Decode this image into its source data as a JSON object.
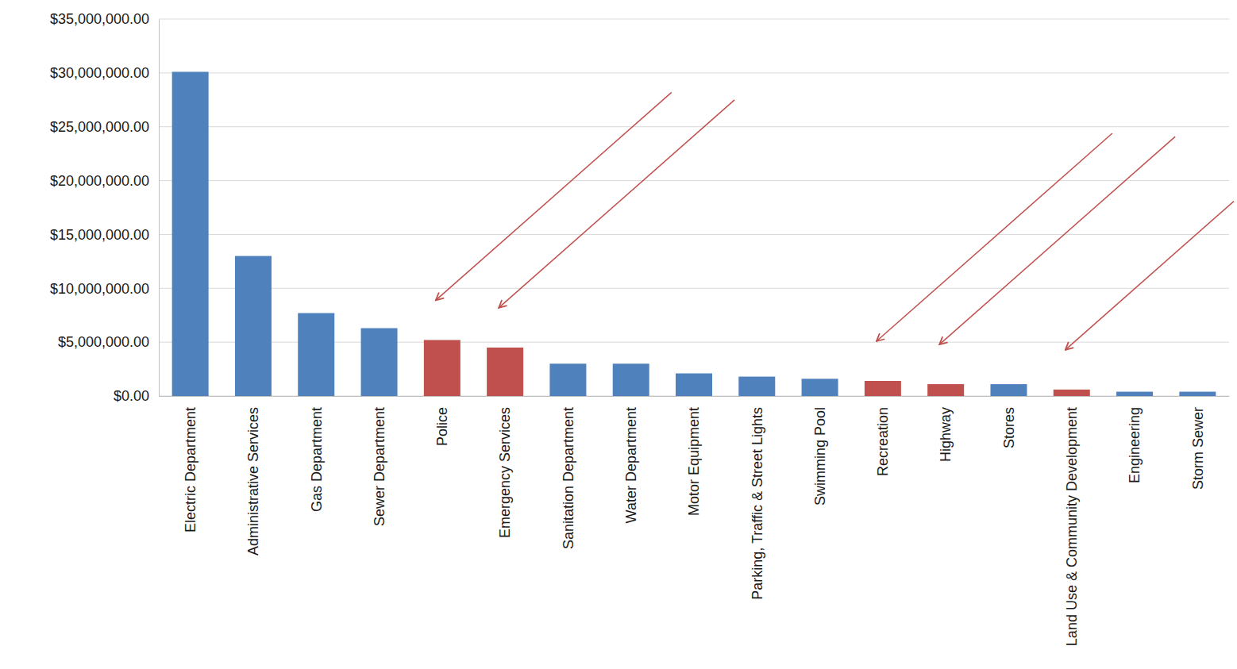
{
  "chart_data": {
    "type": "bar",
    "categories": [
      "Electric Department",
      "Administrative Services",
      "Gas Department",
      "Sewer Department",
      "Police",
      "Emergency Services",
      "Sanitation Department",
      "Water Department",
      "Motor Equipment",
      "Parking, Traffic & Street Lights",
      "Swimming Pool",
      "Recreation",
      "Highway",
      "Stores",
      "Land Use & Community Development",
      "Engineering",
      "Storm Sewer"
    ],
    "values": [
      30100000,
      13000000,
      7700000,
      6300000,
      5200000,
      4500000,
      3000000,
      3000000,
      2100000,
      1800000,
      1600000,
      1400000,
      1100000,
      1100000,
      600000,
      400000,
      400000
    ],
    "colors": [
      "#4f81bd",
      "#4f81bd",
      "#4f81bd",
      "#4f81bd",
      "#c0504d",
      "#c0504d",
      "#4f81bd",
      "#4f81bd",
      "#4f81bd",
      "#4f81bd",
      "#4f81bd",
      "#c0504d",
      "#c0504d",
      "#4f81bd",
      "#c0504d",
      "#4f81bd",
      "#4f81bd"
    ],
    "ylim": [
      0,
      35000000
    ],
    "yticks": [
      {
        "value": 0,
        "label": "$0.00"
      },
      {
        "value": 5000000,
        "label": "$5,000,000.00"
      },
      {
        "value": 10000000,
        "label": "$10,000,000.00"
      },
      {
        "value": 15000000,
        "label": "$15,000,000.00"
      },
      {
        "value": 20000000,
        "label": "$20,000,000.00"
      },
      {
        "value": 25000000,
        "label": "$25,000,000.00"
      },
      {
        "value": 30000000,
        "label": "$30,000,000.00"
      },
      {
        "value": 35000000,
        "label": "$35,000,000.00"
      }
    ],
    "grid": true
  }
}
